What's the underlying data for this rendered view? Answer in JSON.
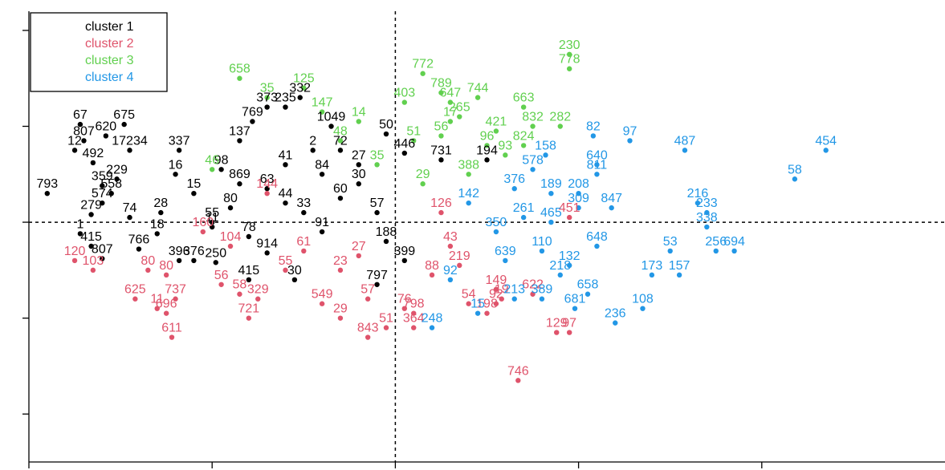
{
  "chart_data": {
    "type": "scatter",
    "title": "",
    "xlabel": "",
    "ylabel": "",
    "xlim": [
      -2.0,
      3.0
    ],
    "ylim": [
      -2.5,
      2.2
    ],
    "grid": false,
    "reference_lines": {
      "x": 0,
      "y": 0
    },
    "legend": {
      "placement": "top-left",
      "entries": [
        {
          "name": "cluster 1",
          "color": "#000000"
        },
        {
          "name": "cluster 2",
          "color": "#DF536B"
        },
        {
          "name": "cluster 3",
          "color": "#61D04F"
        },
        {
          "name": "cluster 4",
          "color": "#2297E6"
        }
      ]
    },
    "series": [
      {
        "name": "cluster 1",
        "color": "#000000",
        "points": [
          {
            "x": -1.72,
            "y": 1.02,
            "label": "67"
          },
          {
            "x": -1.48,
            "y": 1.02,
            "label": "675"
          },
          {
            "x": -1.58,
            "y": 0.9,
            "label": "620"
          },
          {
            "x": -1.7,
            "y": 0.85,
            "label": "807"
          },
          {
            "x": -1.75,
            "y": 0.75,
            "label": "12"
          },
          {
            "x": -1.45,
            "y": 0.75,
            "label": "17234"
          },
          {
            "x": -1.18,
            "y": 0.75,
            "label": "337"
          },
          {
            "x": -1.65,
            "y": 0.62,
            "label": "492"
          },
          {
            "x": -1.52,
            "y": 0.45,
            "label": "229"
          },
          {
            "x": -1.6,
            "y": 0.38,
            "label": "359"
          },
          {
            "x": -1.55,
            "y": 0.3,
            "label": "558"
          },
          {
            "x": -1.9,
            "y": 0.3,
            "label": "793"
          },
          {
            "x": -1.6,
            "y": 0.2,
            "label": "574"
          },
          {
            "x": -1.66,
            "y": 0.08,
            "label": "279"
          },
          {
            "x": -1.45,
            "y": 0.05,
            "label": "74"
          },
          {
            "x": -1.28,
            "y": 0.1,
            "label": "28"
          },
          {
            "x": -1.3,
            "y": -0.12,
            "label": "18"
          },
          {
            "x": -1.72,
            "y": -0.12,
            "label": "1"
          },
          {
            "x": -1.66,
            "y": -0.25,
            "label": "415"
          },
          {
            "x": -1.4,
            "y": -0.28,
            "label": "766"
          },
          {
            "x": -1.6,
            "y": -0.38,
            "label": "807"
          },
          {
            "x": -1.18,
            "y": -0.4,
            "label": "396"
          },
          {
            "x": -1.1,
            "y": -0.4,
            "label": "376"
          },
          {
            "x": -0.98,
            "y": -0.42,
            "label": "250"
          },
          {
            "x": -0.7,
            "y": -0.32,
            "label": "914"
          },
          {
            "x": -0.8,
            "y": -0.6,
            "label": "415"
          },
          {
            "x": -0.55,
            "y": -0.6,
            "label": "30"
          },
          {
            "x": -0.7,
            "y": 1.2,
            "label": "373"
          },
          {
            "x": -0.6,
            "y": 1.2,
            "label": "235"
          },
          {
            "x": -0.52,
            "y": 1.3,
            "label": "332"
          },
          {
            "x": -0.78,
            "y": 1.05,
            "label": "769"
          },
          {
            "x": -0.35,
            "y": 1.0,
            "label": "1049"
          },
          {
            "x": -0.05,
            "y": 0.92,
            "label": "50"
          },
          {
            "x": -0.85,
            "y": 0.85,
            "label": "137"
          },
          {
            "x": -0.45,
            "y": 0.75,
            "label": "2"
          },
          {
            "x": -0.3,
            "y": 0.75,
            "label": "72"
          },
          {
            "x": 0.05,
            "y": 0.72,
            "label": "446"
          },
          {
            "x": 0.25,
            "y": 0.65,
            "label": "731"
          },
          {
            "x": 0.5,
            "y": 0.65,
            "label": "194"
          },
          {
            "x": -0.95,
            "y": 0.55,
            "label": "98"
          },
          {
            "x": -0.85,
            "y": 0.4,
            "label": "869"
          },
          {
            "x": -0.4,
            "y": 0.5,
            "label": "84"
          },
          {
            "x": -0.2,
            "y": 0.4,
            "label": "30"
          },
          {
            "x": -1.1,
            "y": 0.3,
            "label": "15"
          },
          {
            "x": -0.6,
            "y": 0.2,
            "label": "44"
          },
          {
            "x": -0.3,
            "y": 0.25,
            "label": "60"
          },
          {
            "x": -0.9,
            "y": 0.15,
            "label": "80"
          },
          {
            "x": -0.5,
            "y": 0.1,
            "label": "33"
          },
          {
            "x": -0.1,
            "y": 0.1,
            "label": "57"
          },
          {
            "x": -1.0,
            "y": -0.05,
            "label": "11"
          },
          {
            "x": -0.8,
            "y": -0.15,
            "label": "78"
          },
          {
            "x": -0.05,
            "y": -0.2,
            "label": "188"
          },
          {
            "x": 0.05,
            "y": -0.4,
            "label": "399"
          },
          {
            "x": -0.1,
            "y": -0.65,
            "label": "797"
          },
          {
            "x": -1.2,
            "y": 0.5,
            "label": "16"
          },
          {
            "x": -0.6,
            "y": 0.6,
            "label": "41"
          },
          {
            "x": -0.2,
            "y": 0.6,
            "label": "27"
          },
          {
            "x": -1.0,
            "y": 0.0,
            "label": "55"
          },
          {
            "x": -0.4,
            "y": -0.1,
            "label": "91"
          },
          {
            "x": -0.7,
            "y": 0.35,
            "label": "63"
          }
        ]
      },
      {
        "name": "cluster 2",
        "color": "#DF536B",
        "points": [
          {
            "x": -1.75,
            "y": -0.4,
            "label": "120"
          },
          {
            "x": -1.65,
            "y": -0.5,
            "label": "103"
          },
          {
            "x": -1.35,
            "y": -0.5,
            "label": "80"
          },
          {
            "x": -1.25,
            "y": -0.55,
            "label": "80"
          },
          {
            "x": -1.42,
            "y": -0.8,
            "label": "625"
          },
          {
            "x": -1.2,
            "y": -0.8,
            "label": "737"
          },
          {
            "x": -1.3,
            "y": -0.9,
            "label": "11"
          },
          {
            "x": -1.25,
            "y": -0.95,
            "label": "696"
          },
          {
            "x": -1.22,
            "y": -1.2,
            "label": "611"
          },
          {
            "x": -0.95,
            "y": -0.65,
            "label": "56"
          },
          {
            "x": -0.85,
            "y": -0.75,
            "label": "58"
          },
          {
            "x": -0.75,
            "y": -0.8,
            "label": "329"
          },
          {
            "x": -0.8,
            "y": -1.0,
            "label": "721"
          },
          {
            "x": -0.4,
            "y": -0.85,
            "label": "549"
          },
          {
            "x": -0.15,
            "y": -0.8,
            "label": "57"
          },
          {
            "x": 0.05,
            "y": -0.9,
            "label": "76"
          },
          {
            "x": 0.1,
            "y": -0.95,
            "label": "798"
          },
          {
            "x": -0.3,
            "y": -1.0,
            "label": "29"
          },
          {
            "x": -0.05,
            "y": -1.1,
            "label": "51"
          },
          {
            "x": 0.1,
            "y": -1.1,
            "label": "364"
          },
          {
            "x": -0.15,
            "y": -1.2,
            "label": "843"
          },
          {
            "x": 0.58,
            "y": -0.8,
            "label": "19"
          },
          {
            "x": 0.4,
            "y": -0.85,
            "label": "54"
          },
          {
            "x": 0.5,
            "y": -0.95,
            "label": "198"
          },
          {
            "x": 0.75,
            "y": -0.75,
            "label": "622"
          },
          {
            "x": 0.55,
            "y": -0.7,
            "label": "149"
          },
          {
            "x": 0.55,
            "y": -0.85,
            "label": "92"
          },
          {
            "x": 0.88,
            "y": -1.15,
            "label": "129"
          },
          {
            "x": 0.95,
            "y": -1.15,
            "label": "97"
          },
          {
            "x": 0.67,
            "y": -1.65,
            "label": "746"
          },
          {
            "x": -0.6,
            "y": -0.5,
            "label": "55"
          },
          {
            "x": -0.3,
            "y": -0.5,
            "label": "23"
          },
          {
            "x": -0.5,
            "y": -0.3,
            "label": "61"
          },
          {
            "x": -0.2,
            "y": -0.35,
            "label": "27"
          },
          {
            "x": 0.2,
            "y": -0.55,
            "label": "88"
          },
          {
            "x": 0.3,
            "y": -0.25,
            "label": "43"
          },
          {
            "x": 0.25,
            "y": 0.1,
            "label": "126"
          },
          {
            "x": 0.95,
            "y": 0.05,
            "label": "451"
          },
          {
            "x": -0.9,
            "y": -0.25,
            "label": "104"
          },
          {
            "x": -1.05,
            "y": -0.1,
            "label": "160"
          },
          {
            "x": -0.7,
            "y": 0.3,
            "label": "144"
          },
          {
            "x": 0.35,
            "y": -0.45,
            "label": "219"
          }
        ]
      },
      {
        "name": "cluster 3",
        "color": "#61D04F",
        "points": [
          {
            "x": -0.5,
            "y": 1.4,
            "label": "125"
          },
          {
            "x": -0.85,
            "y": 1.5,
            "label": "658"
          },
          {
            "x": 0.15,
            "y": 1.55,
            "label": "772"
          },
          {
            "x": 0.25,
            "y": 1.35,
            "label": "789"
          },
          {
            "x": 0.05,
            "y": 1.25,
            "label": "403"
          },
          {
            "x": 0.3,
            "y": 1.25,
            "label": "647"
          },
          {
            "x": 0.45,
            "y": 1.3,
            "label": "744"
          },
          {
            "x": 0.35,
            "y": 1.1,
            "label": "265"
          },
          {
            "x": 0.7,
            "y": 1.2,
            "label": "663"
          },
          {
            "x": 0.75,
            "y": 1.0,
            "label": "832"
          },
          {
            "x": 0.9,
            "y": 1.0,
            "label": "282"
          },
          {
            "x": 0.7,
            "y": 0.8,
            "label": "824"
          },
          {
            "x": 0.95,
            "y": 1.75,
            "label": "230"
          },
          {
            "x": 0.95,
            "y": 1.6,
            "label": "778"
          },
          {
            "x": -0.7,
            "y": 1.3,
            "label": "35"
          },
          {
            "x": -0.4,
            "y": 1.15,
            "label": "147"
          },
          {
            "x": -0.2,
            "y": 1.05,
            "label": "14"
          },
          {
            "x": -1.0,
            "y": 0.55,
            "label": "46"
          },
          {
            "x": 0.1,
            "y": 0.85,
            "label": "51"
          },
          {
            "x": 0.25,
            "y": 0.9,
            "label": "56"
          },
          {
            "x": 0.5,
            "y": 0.8,
            "label": "96"
          },
          {
            "x": 0.6,
            "y": 0.7,
            "label": "93"
          },
          {
            "x": 0.4,
            "y": 0.5,
            "label": "388"
          },
          {
            "x": 0.15,
            "y": 0.4,
            "label": "29"
          },
          {
            "x": -0.1,
            "y": 0.6,
            "label": "35"
          },
          {
            "x": 0.3,
            "y": 1.05,
            "label": "17"
          },
          {
            "x": 0.55,
            "y": 0.95,
            "label": "421"
          },
          {
            "x": -0.3,
            "y": 0.85,
            "label": "48"
          }
        ]
      },
      {
        "name": "cluster 4",
        "color": "#2297E6",
        "points": [
          {
            "x": 1.08,
            "y": 0.9,
            "label": "82"
          },
          {
            "x": 1.28,
            "y": 0.85,
            "label": "97"
          },
          {
            "x": 1.58,
            "y": 0.75,
            "label": "487"
          },
          {
            "x": 2.35,
            "y": 0.75,
            "label": "454"
          },
          {
            "x": 2.18,
            "y": 0.45,
            "label": "58"
          },
          {
            "x": 1.1,
            "y": 0.6,
            "label": "640"
          },
          {
            "x": 1.1,
            "y": 0.5,
            "label": "811"
          },
          {
            "x": 0.82,
            "y": 0.7,
            "label": "158"
          },
          {
            "x": 1.18,
            "y": 0.15,
            "label": "847"
          },
          {
            "x": 1.0,
            "y": 0.15,
            "label": "309"
          },
          {
            "x": 1.0,
            "y": 0.3,
            "label": "208"
          },
          {
            "x": 0.85,
            "y": 0.3,
            "label": "189"
          },
          {
            "x": 0.75,
            "y": 0.55,
            "label": "578"
          },
          {
            "x": 1.65,
            "y": 0.2,
            "label": "216"
          },
          {
            "x": 1.7,
            "y": 0.1,
            "label": "233"
          },
          {
            "x": 1.7,
            "y": -0.05,
            "label": "338"
          },
          {
            "x": 1.5,
            "y": -0.3,
            "label": "53"
          },
          {
            "x": 1.75,
            "y": -0.3,
            "label": "256"
          },
          {
            "x": 1.85,
            "y": -0.3,
            "label": "694"
          },
          {
            "x": 1.4,
            "y": -0.55,
            "label": "173"
          },
          {
            "x": 1.55,
            "y": -0.55,
            "label": "157"
          },
          {
            "x": 1.35,
            "y": -0.9,
            "label": "108"
          },
          {
            "x": 1.2,
            "y": -1.05,
            "label": "236"
          },
          {
            "x": 0.98,
            "y": -0.9,
            "label": "681"
          },
          {
            "x": 1.05,
            "y": -0.75,
            "label": "658"
          },
          {
            "x": 1.1,
            "y": -0.25,
            "label": "648"
          },
          {
            "x": 0.8,
            "y": -0.8,
            "label": "389"
          },
          {
            "x": 0.65,
            "y": -0.8,
            "label": "213"
          },
          {
            "x": 0.45,
            "y": -0.95,
            "label": "15"
          },
          {
            "x": 0.2,
            "y": -1.1,
            "label": "248"
          },
          {
            "x": 0.8,
            "y": -0.3,
            "label": "110"
          },
          {
            "x": 0.6,
            "y": -0.4,
            "label": "639"
          },
          {
            "x": 0.9,
            "y": -0.55,
            "label": "218"
          },
          {
            "x": 0.7,
            "y": 0.05,
            "label": "261"
          },
          {
            "x": 0.4,
            "y": 0.2,
            "label": "142"
          },
          {
            "x": 0.55,
            "y": -0.1,
            "label": "350"
          },
          {
            "x": 0.85,
            "y": 0.0,
            "label": "465"
          },
          {
            "x": 0.3,
            "y": -0.6,
            "label": "92"
          },
          {
            "x": 0.95,
            "y": -0.45,
            "label": "132"
          },
          {
            "x": 0.65,
            "y": 0.35,
            "label": "376"
          }
        ]
      }
    ]
  }
}
